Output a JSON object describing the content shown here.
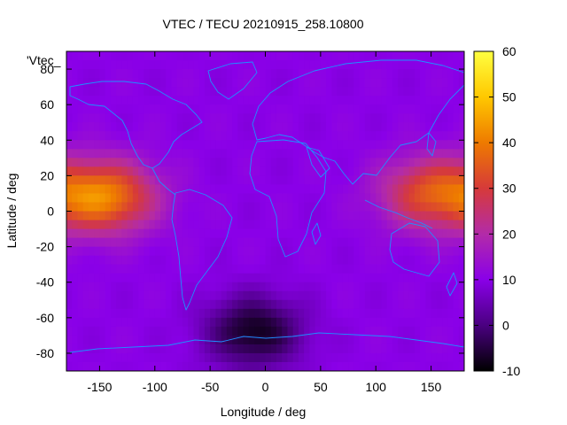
{
  "chart_data": {
    "type": "heatmap",
    "title": "VTEC / TECU 20210915_258.10800",
    "xlabel": "Longitude / deg",
    "ylabel": "Latitude / deg",
    "overlay_label": "'Vtec_",
    "xlim": [
      -180,
      180
    ],
    "ylim": [
      -90,
      90
    ],
    "xticks": [
      -150,
      -100,
      -50,
      0,
      50,
      100,
      150
    ],
    "yticks": [
      -80,
      -60,
      -40,
      -20,
      0,
      20,
      40,
      60,
      80
    ],
    "colorbar": {
      "range": [
        -10,
        60
      ],
      "ticks": [
        -10,
        0,
        10,
        20,
        30,
        40,
        50,
        60
      ],
      "palette": [
        "#000000",
        "#4a0080",
        "#8a00e8",
        "#b32ba8",
        "#d63a3a",
        "#ee7a00",
        "#ffc800",
        "#ffff40"
      ]
    },
    "coastline_color": "#1e90ff",
    "field_features": [
      {
        "feature": "background",
        "value": 10
      },
      {
        "feature": "crest",
        "lon": -145,
        "lat": 8,
        "value": 40
      },
      {
        "feature": "crest",
        "lon": 150,
        "lat": 10,
        "value": 33
      },
      {
        "feature": "trough",
        "lon": -10,
        "lat": -68,
        "value": -8
      }
    ]
  }
}
